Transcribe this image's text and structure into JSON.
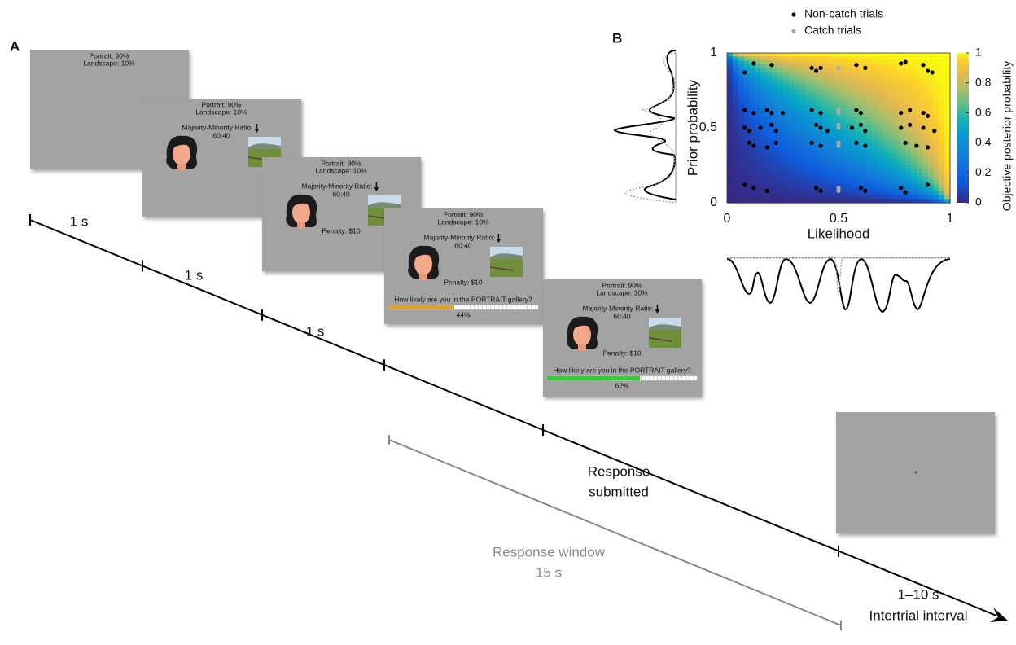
{
  "panel_a": {
    "label": "A",
    "screens": [
      {
        "prior": [
          "Portrait: 90%",
          "Landscape: 10%"
        ]
      },
      {
        "prior": [
          "Portrait: 90%",
          "Landscape: 10%"
        ],
        "ratio_label": "Majority-Minority Ratio:",
        "ratio": "60:40"
      },
      {
        "prior": [
          "Portrait: 90%",
          "Landscape: 10%"
        ],
        "ratio_label": "Majority-Minority Ratio:",
        "ratio": "60:40",
        "penalty": "Penalty: $10"
      },
      {
        "prior": [
          "Portrait: 90%",
          "Landscape: 10%"
        ],
        "ratio_label": "Majority-Minority Ratio:",
        "ratio": "60:40",
        "penalty": "Penalty: $10",
        "question": "How likely are you in the PORTRAIT gallery?",
        "response": "44%",
        "slider_color": "#e6a21c"
      },
      {
        "prior": [
          "Portrait: 90%",
          "Landscape: 10%"
        ],
        "ratio_label": "Majority-Minority Ratio:",
        "ratio": "60:40",
        "penalty": "Penalty: $10",
        "question": "How likely are you in the PORTRAIT gallery?",
        "response": "62%",
        "slider_color": "#2bd12b"
      },
      {
        "fixation": "+"
      }
    ],
    "durations": [
      "1 s",
      "1 s",
      "1 s"
    ],
    "response_submitted": [
      "Response",
      "submitted"
    ],
    "response_window": [
      "Response window",
      "15 s"
    ],
    "iti": [
      "1–10 s",
      "Intertrial interval"
    ]
  },
  "chart_data": {
    "type": "scatter",
    "panel_label": "B",
    "x_label": "Likelihood",
    "y_label": "Prior probability",
    "colorbar_label": "Objective posterior probability",
    "xlim": [
      0,
      1
    ],
    "ylim": [
      0,
      1
    ],
    "xticks": [
      0,
      0.5,
      1
    ],
    "yticks": [
      0,
      0.5,
      1
    ],
    "colorbar_lim": [
      0,
      1
    ],
    "colorbar_ticks": [
      0,
      0.2,
      0.4,
      0.6,
      0.8,
      1
    ],
    "series": [
      {
        "name": "Non-catch trials",
        "color": "#000000",
        "x": [
          0.12,
          0.2,
          0.08,
          0.38,
          0.4,
          0.42,
          0.58,
          0.62,
          0.78,
          0.8,
          0.88,
          0.9,
          0.92,
          0.08,
          0.12,
          0.18,
          0.2,
          0.25,
          0.38,
          0.42,
          0.58,
          0.6,
          0.78,
          0.82,
          0.88,
          0.9,
          0.08,
          0.1,
          0.15,
          0.2,
          0.22,
          0.4,
          0.42,
          0.45,
          0.56,
          0.6,
          0.62,
          0.78,
          0.82,
          0.88,
          0.93,
          0.1,
          0.12,
          0.18,
          0.22,
          0.38,
          0.42,
          0.58,
          0.62,
          0.8,
          0.85,
          0.9,
          0.08,
          0.12,
          0.18,
          0.4,
          0.42,
          0.6,
          0.62,
          0.78,
          0.8,
          0.9
        ],
        "values": [
          0.93,
          0.92,
          0.87,
          0.9,
          0.88,
          0.9,
          0.92,
          0.9,
          0.93,
          0.94,
          0.92,
          0.88,
          0.87,
          0.62,
          0.6,
          0.62,
          0.6,
          0.6,
          0.62,
          0.6,
          0.62,
          0.6,
          0.6,
          0.62,
          0.6,
          0.58,
          0.5,
          0.48,
          0.5,
          0.52,
          0.48,
          0.52,
          0.5,
          0.48,
          0.5,
          0.52,
          0.48,
          0.5,
          0.52,
          0.5,
          0.48,
          0.4,
          0.38,
          0.37,
          0.4,
          0.4,
          0.38,
          0.4,
          0.38,
          0.4,
          0.38,
          0.37,
          0.12,
          0.1,
          0.08,
          0.1,
          0.08,
          0.1,
          0.08,
          0.1,
          0.07,
          0.12
        ]
      },
      {
        "name": "Catch trials",
        "color": "#aaaaaa",
        "x": [
          0.5,
          0.5,
          0.5,
          0.5,
          0.5,
          0.5,
          0.5,
          0.5,
          0.5
        ],
        "values": [
          0.9,
          0.62,
          0.6,
          0.52,
          0.5,
          0.4,
          0.38,
          0.1,
          0.08
        ]
      }
    ]
  }
}
